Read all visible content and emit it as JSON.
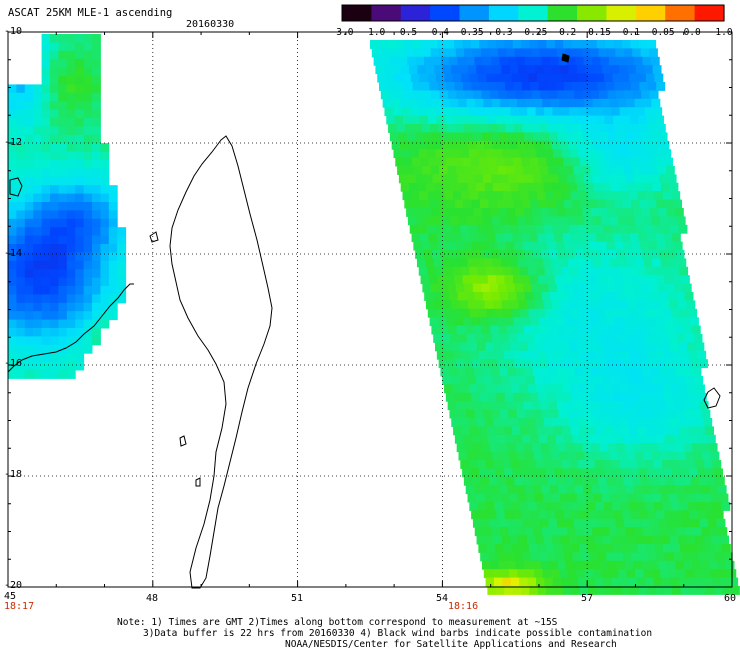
{
  "header": {
    "title": "ASCAT 25KM MLE-1 ascending",
    "date": "20160330"
  },
  "colorbar": {
    "labels": [
      "-3.0",
      "-1.0",
      "-0.5",
      "-0.4",
      "-0.35",
      "-0.3",
      "-0.25",
      "-0.2",
      "-0.15",
      "-0.1",
      "-0.05",
      "0.0",
      "1.0"
    ],
    "colors": [
      "#1a0010",
      "#4a0b78",
      "#2c22d8",
      "#0048ff",
      "#0094ff",
      "#00d6ff",
      "#00f2d2",
      "#2de02d",
      "#88e800",
      "#d8f000",
      "#ffd000",
      "#ff7000",
      "#ff1800"
    ]
  },
  "axes": {
    "lat_labels": [
      "-10",
      "-12",
      "-14",
      "-16",
      "-18",
      "-20"
    ],
    "lon_labels": [
      "45",
      "48",
      "51",
      "54",
      "57",
      "60"
    ]
  },
  "times": {
    "left_swath": "18:17",
    "right_swath": "18:16"
  },
  "notes": {
    "line1": "Note: 1) Times are GMT 2)Times along bottom correspond to measurement at ~15S",
    "line2": "3)Data buffer is 22 hrs from 20160330 4) Black wind barbs indicate possible contamination",
    "line3": "NOAA/NESDIS/Center for Satellite Applications and Research"
  }
}
